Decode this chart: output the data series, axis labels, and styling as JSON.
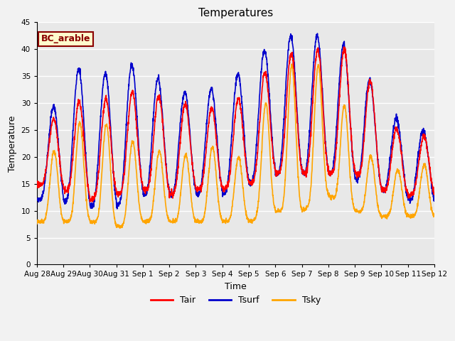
{
  "title": "Temperatures",
  "xlabel": "Time",
  "ylabel": "Temperature",
  "ylim": [
    0,
    45
  ],
  "yticks": [
    0,
    5,
    10,
    15,
    20,
    25,
    30,
    35,
    40,
    45
  ],
  "legend_label": "BC_arable",
  "legend_text_color": "#8B0000",
  "legend_bg_color": "#FFFACD",
  "legend_border_color": "#8B0000",
  "tair_color": "#FF0000",
  "tsurf_color": "#0000CC",
  "tsky_color": "#FFA500",
  "line_width": 1.2,
  "bg_color": "#E8E8E8",
  "grid_color": "#FFFFFF",
  "fig_bg_color": "#F2F2F2",
  "xtick_labels": [
    "Aug 28",
    "Aug 29",
    "Aug 30",
    "Aug 31",
    "Sep 1",
    "Sep 2",
    "Sep 3",
    "Sep 4",
    "Sep 5",
    "Sep 6",
    "Sep 7",
    "Sep 8",
    "Sep 9",
    "Sep 10",
    "Sep 11",
    "Sep 12"
  ],
  "n_days": 15
}
